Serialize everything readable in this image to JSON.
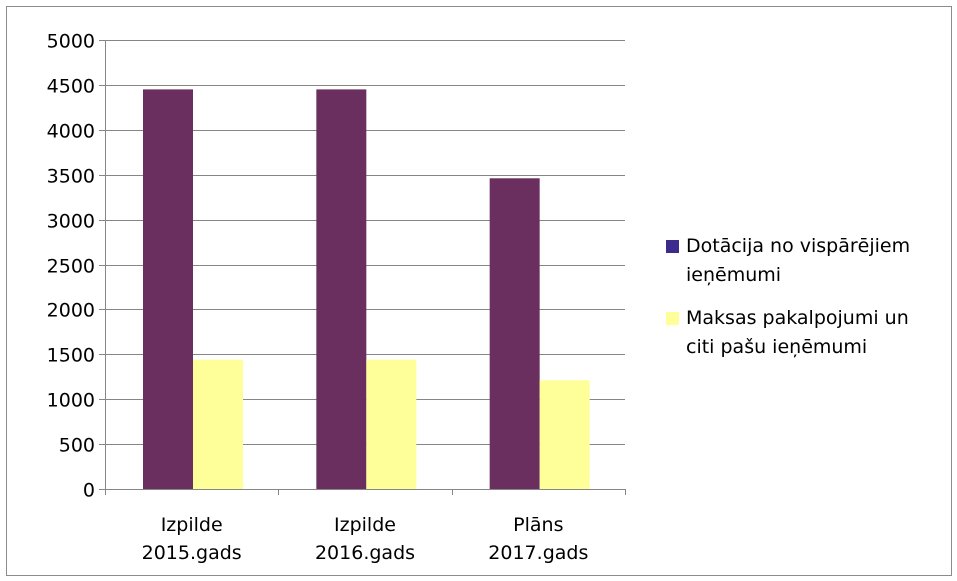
{
  "chart_data": {
    "type": "bar",
    "categories": [
      "Izpilde\n2015.gads",
      "Izpilde\n2016.gads",
      "Plāns\n2017.gads"
    ],
    "series": [
      {
        "name": "Dotācija no vispārējiem ieņēmumi",
        "color": "#6A2F5F",
        "values": [
          4450,
          4450,
          3460
        ]
      },
      {
        "name": "Maksas pakalpojumi un citi pašu ieņēmumi",
        "color": "#FFFF99",
        "values": [
          1440,
          1440,
          1210
        ]
      }
    ],
    "ylim": [
      0,
      5000
    ],
    "yticks": [
      0,
      500,
      1000,
      1500,
      2000,
      2500,
      3000,
      3500,
      4000,
      4500,
      5000
    ],
    "grid": true,
    "legend_position": "right",
    "legend_swatch_colors": [
      "#3E2A8C",
      "#FFFF99"
    ]
  },
  "legend": {
    "items": [
      {
        "label": "Dotācija no vispārējiem\nieņēmumi"
      },
      {
        "label": "Maksas pakalpojumi un\nciti pašu ieņēmumi"
      }
    ]
  }
}
